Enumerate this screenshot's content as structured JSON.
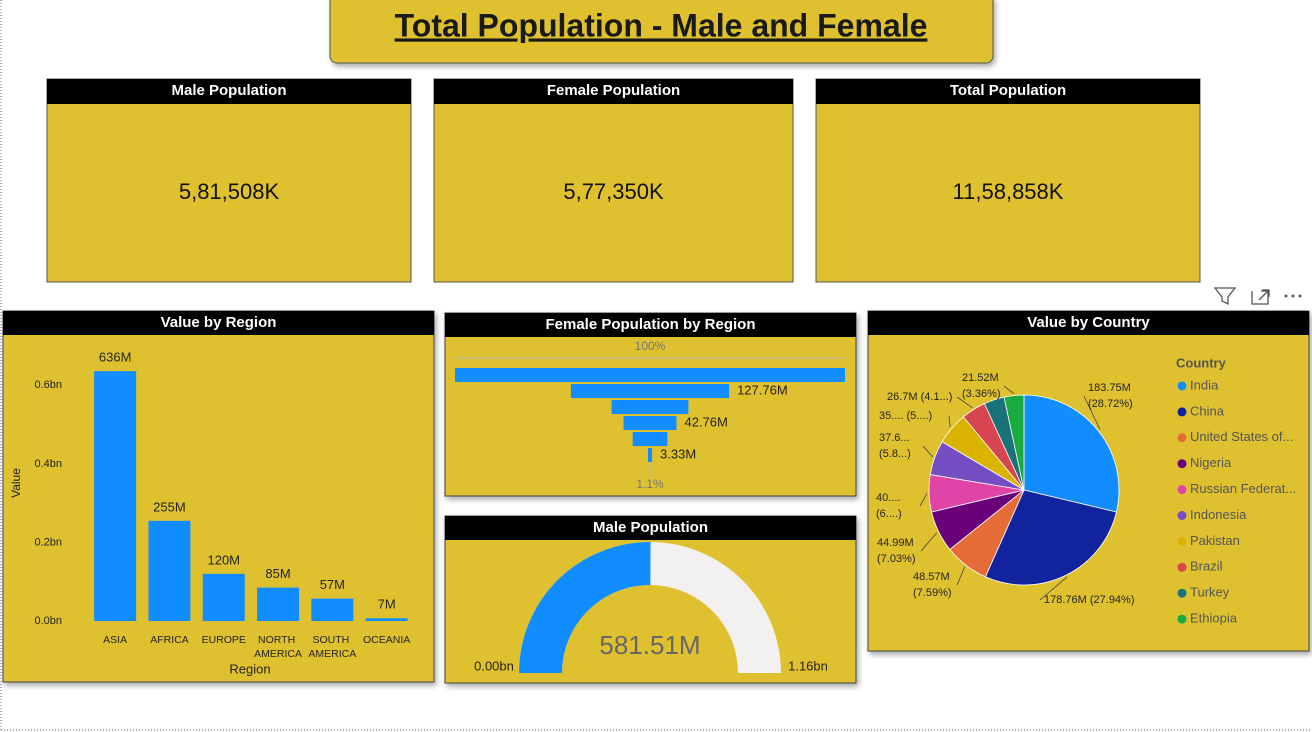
{
  "title": "Total Population - Male and Female",
  "cards": [
    {
      "label": "Male Population",
      "value": "5,81,508K"
    },
    {
      "label": "Female Population",
      "value": "5,77,350K"
    },
    {
      "label": "Total Population",
      "value": "11,58,858K"
    }
  ],
  "chart_data": [
    {
      "type": "bar",
      "title": "Value by Region",
      "x_label": "Region",
      "y_label": "Value",
      "categories": [
        "ASIA",
        "AFRICA",
        "EUROPE",
        "NORTH AMERICA",
        "SOUTH AMERICA",
        "OCEANIA"
      ],
      "values": [
        0.636,
        0.255,
        0.12,
        0.085,
        0.057,
        0.007
      ],
      "value_labels": [
        "636M",
        "255M",
        "120M",
        "85M",
        "57M",
        "7M"
      ],
      "color": "#118dff",
      "ylim": [
        0,
        0.7
      ],
      "yticks": [
        {
          "value": 0,
          "label": "0.0bn"
        },
        {
          "value": 0.2,
          "label": "0.2bn"
        },
        {
          "value": 0.4,
          "label": "0.4bn"
        },
        {
          "value": 0.6,
          "label": "0.6bn"
        }
      ]
    },
    {
      "type": "funnel",
      "title": "Female Population by Region",
      "values": [
        315,
        127.76,
        62,
        42.76,
        28,
        3.33
      ],
      "value_labels": [
        null,
        "127.76M",
        null,
        "42.76M",
        null,
        "3.33M"
      ],
      "percent_labels": [
        "100%",
        "1.1%"
      ],
      "color": "#118dff"
    },
    {
      "type": "gauge",
      "title": "Male Population",
      "value": 0.58151,
      "value_label": "581.51M",
      "min": {
        "value": 0,
        "label": "0.00bn"
      },
      "max": {
        "value": 1.16,
        "label": "1.16bn"
      },
      "color": "#118dff",
      "track_color": "#f2f1f0"
    },
    {
      "type": "pie",
      "title": "Value by Country",
      "legend_title": "Country",
      "categories": [
        "India",
        "China",
        "United States of...",
        "Nigeria",
        "Russian Federat...",
        "Indonesia",
        "Pakistan",
        "Brazil",
        "Turkey",
        "Ethiopia"
      ],
      "values": [
        183.75,
        178.76,
        48.57,
        44.99,
        40.4,
        37.6,
        35.3,
        26.7,
        22.2,
        21.52
      ],
      "value_labels": [
        "183.75M (28.72%)",
        "178.76M (27.94%)",
        "48.57M (7.59%)",
        "44.99M (7.03%)",
        "40.... (6....)",
        "37.6... (5.8...)",
        "35.... (5....)",
        "26.7M (4.1...)",
        null,
        "21.52M (3.36%)"
      ],
      "colors": [
        "#118dff",
        "#12239e",
        "#e66c37",
        "#6b007b",
        "#e044a7",
        "#744ec2",
        "#d9b300",
        "#d64550",
        "#197278",
        "#1aab40"
      ]
    }
  ]
}
